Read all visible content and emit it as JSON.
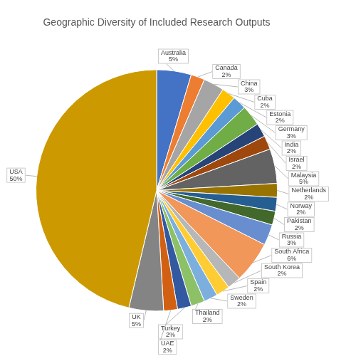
{
  "chart_data": {
    "type": "pie",
    "title": "Geographic Diversity of Included Research Outputs",
    "categories": [
      "Australia",
      "Canada",
      "China",
      "Cuba",
      "Estonia",
      "Germany",
      "India",
      "Israel",
      "Malaysia",
      "Netherlands",
      "Norway",
      "Pakistan",
      "Russia",
      "South Africa",
      "South Korea",
      "Spain",
      "Sweden",
      "Thailand",
      "Turkey",
      "UAE",
      "UK",
      "USA"
    ],
    "values": [
      5,
      2,
      3,
      2,
      2,
      3,
      2,
      2,
      5,
      2,
      2,
      2,
      3,
      6,
      2,
      2,
      2,
      2,
      2,
      2,
      5,
      50
    ],
    "value_labels": [
      "5%",
      "2%",
      "3%",
      "2%",
      "2%",
      "3%",
      "2%",
      "2%",
      "5%",
      "2%",
      "2%",
      "2%",
      "3%",
      "6%",
      "2%",
      "2%",
      "2%",
      "2%",
      "2%",
      "2%",
      "5%",
      "50%"
    ],
    "colors": [
      "#4472c4",
      "#ed7d31",
      "#a5a5a5",
      "#ffc000",
      "#5b9bd5",
      "#70ad47",
      "#264478",
      "#9e480e",
      "#636363",
      "#997300",
      "#255e91",
      "#43682b",
      "#698ed0",
      "#f1975a",
      "#b7b7b7",
      "#ffcd33",
      "#7cafdd",
      "#8cc168",
      "#335aa1",
      "#d26012",
      "#848484",
      "#cc9a00"
    ],
    "data_labels": true
  }
}
